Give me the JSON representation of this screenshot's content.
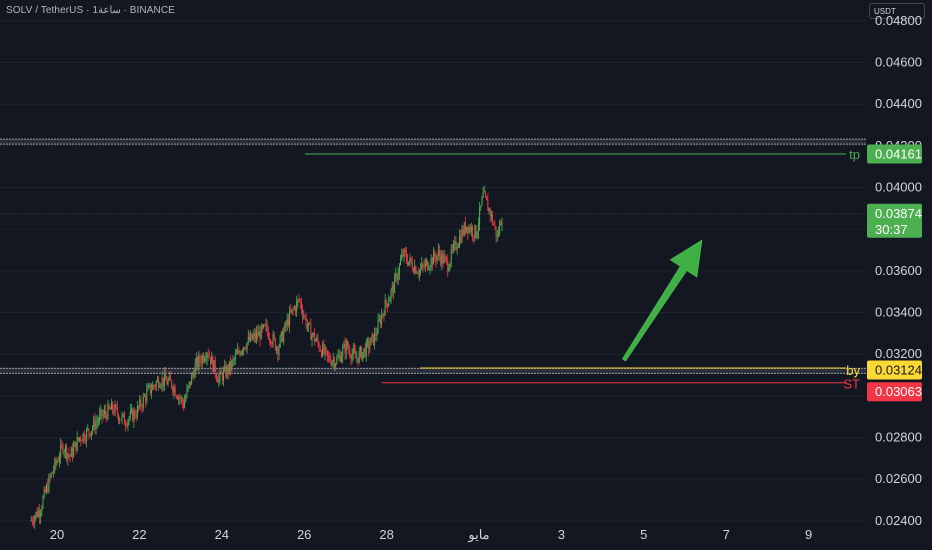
{
  "header": {
    "symbol_line": "SOLV / TetherUS · 1ساعة · BINANCE"
  },
  "currency_selector": "USDT",
  "colors": {
    "background": "#131722",
    "up": "#4caf50",
    "down": "#f23645",
    "tp": "#4caf50",
    "by": "#fdd835",
    "st": "#f23645",
    "arrow": "#3fb144"
  },
  "chart_data": {
    "type": "candlestick",
    "symbol": "SOLV / TetherUS",
    "exchange": "BINANCE",
    "ylim": [
      0.0238,
      0.049
    ],
    "y_ticks": [
      "0.04800",
      "0.04600",
      "0.04400",
      "0.04200",
      "0.04000",
      "0.03800",
      "0.03600",
      "0.03400",
      "0.03200",
      "0.03000",
      "0.02800",
      "0.02600",
      "0.02400"
    ],
    "x_ticks": [
      "20",
      "22",
      "24",
      "26",
      "28",
      "مايو",
      "3",
      "5",
      "7",
      "9"
    ],
    "series_path": [
      [
        0,
        0.024
      ],
      [
        8,
        0.0245
      ],
      [
        18,
        0.0262
      ],
      [
        28,
        0.0276
      ],
      [
        34,
        0.0271
      ],
      [
        42,
        0.028
      ],
      [
        50,
        0.0283
      ],
      [
        60,
        0.029
      ],
      [
        70,
        0.0294
      ],
      [
        80,
        0.0288
      ],
      [
        90,
        0.0292
      ],
      [
        100,
        0.0302
      ],
      [
        110,
        0.0308
      ],
      [
        120,
        0.0306
      ],
      [
        130,
        0.0296
      ],
      [
        140,
        0.0314
      ],
      [
        150,
        0.0322
      ],
      [
        160,
        0.0308
      ],
      [
        170,
        0.0314
      ],
      [
        180,
        0.0324
      ],
      [
        190,
        0.0328
      ],
      [
        200,
        0.0332
      ],
      [
        210,
        0.0323
      ],
      [
        220,
        0.0338
      ],
      [
        228,
        0.0346
      ],
      [
        236,
        0.0332
      ],
      [
        244,
        0.0325
      ],
      [
        252,
        0.0318
      ],
      [
        260,
        0.0317
      ],
      [
        268,
        0.0324
      ],
      [
        276,
        0.0318
      ],
      [
        284,
        0.0322
      ],
      [
        292,
        0.0328
      ],
      [
        300,
        0.0342
      ],
      [
        308,
        0.0352
      ],
      [
        316,
        0.0368
      ],
      [
        322,
        0.0364
      ],
      [
        330,
        0.036
      ],
      [
        338,
        0.0364
      ],
      [
        346,
        0.0368
      ],
      [
        354,
        0.0363
      ],
      [
        362,
        0.0374
      ],
      [
        370,
        0.0382
      ],
      [
        378,
        0.0378
      ],
      [
        384,
        0.0396
      ],
      [
        390,
        0.0388
      ],
      [
        396,
        0.0376
      ],
      [
        400,
        0.03874
      ]
    ],
    "levels": {
      "tp": {
        "label": "tp",
        "value": 0.04161,
        "display": "0.04161"
      },
      "by": {
        "label": "by",
        "value": 0.03124,
        "display": "0.03124"
      },
      "st": {
        "label": "ST",
        "value": 0.03063,
        "display": "0.03063"
      }
    },
    "zone_upper": 0.0422,
    "zone_lower": 0.0312,
    "last_price": {
      "value": 0.03874,
      "display": "0.03874",
      "countdown": "30:37"
    },
    "arrow": {
      "direction": "up"
    }
  }
}
